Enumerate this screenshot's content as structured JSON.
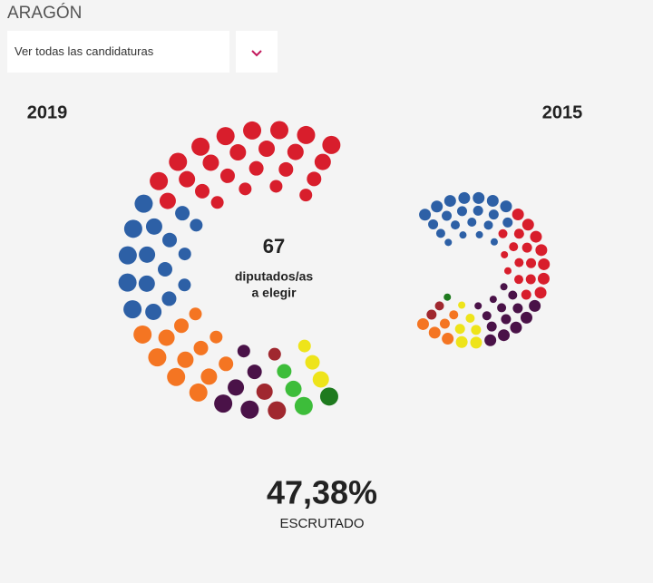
{
  "header": {
    "title": "ARAGÓN",
    "select": "Ver todas las candidaturas"
  },
  "chart_data": [
    {
      "type": "parliament",
      "title": "2019",
      "values": [
        24,
        16,
        12,
        5,
        3,
        3,
        1,
        3
      ],
      "colors": [
        "#d81e2c",
        "#2d60a6",
        "#f47522",
        "#4a1248",
        "#a0282f",
        "#3dbd3a",
        "#1e7a1e",
        "#eee41a"
      ]
    },
    {
      "type": "parliament",
      "title": "2015",
      "values": [
        21,
        18,
        14,
        6,
        5,
        2,
        1
      ],
      "colors": [
        "#2d60a6",
        "#d81e2c",
        "#4a1248",
        "#eee41a",
        "#f47522",
        "#a0282f",
        "#1e7a1e"
      ]
    }
  ],
  "seats": {
    "total": 67,
    "label": [
      "diputados/as",
      "a elegir"
    ]
  },
  "scrutiny": {
    "value": "47,38%",
    "label": "ESCRUTADO"
  }
}
